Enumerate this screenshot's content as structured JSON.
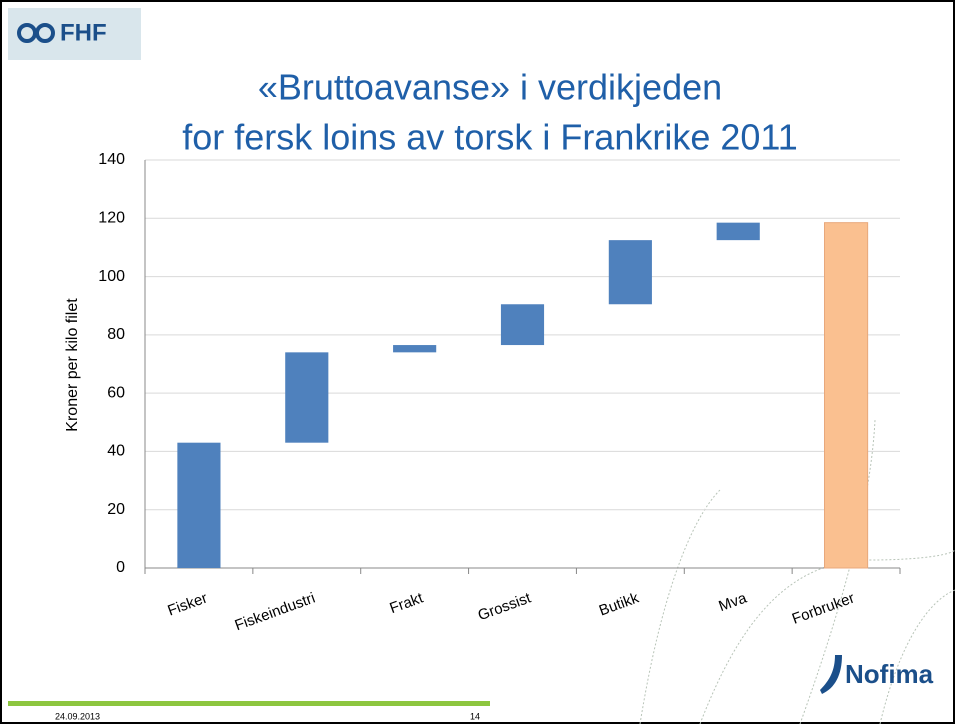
{
  "logo": "FHF",
  "footer": {
    "date": "24.09.2013",
    "page": "14",
    "brand": "Nofima"
  },
  "chart_data": {
    "type": "waterfall",
    "title": [
      "«Bruttoavanse» i verdikjeden",
      "for fersk loins av torsk i Frankrike 2011"
    ],
    "y_label": "Kroner per kilo filet",
    "categories": [
      "Fisker",
      "Fiskeindustri",
      "Frakt",
      "Grossist",
      "Butikk",
      "Mva",
      "Forbruker"
    ],
    "values": [
      43,
      31,
      2.5,
      14,
      22,
      6,
      118.5
    ],
    "measure": [
      "relative",
      "relative",
      "relative",
      "relative",
      "relative",
      "relative",
      "total"
    ],
    "colors": [
      "#4f81bd",
      "#4f81bd",
      "#4f81bd",
      "#4f81bd",
      "#4f81bd",
      "#4f81bd",
      "#fac090"
    ],
    "ylim": [
      0,
      140
    ],
    "yticks": [
      0,
      20,
      40,
      60,
      80,
      100,
      120,
      140
    ],
    "grid": true
  }
}
